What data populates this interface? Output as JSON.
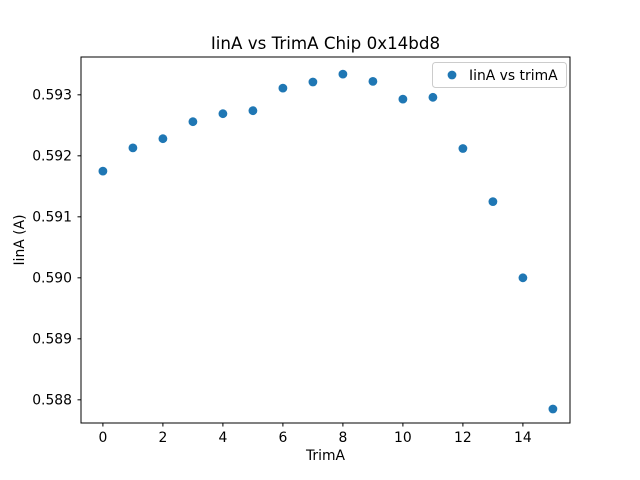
{
  "chart_data": {
    "type": "scatter",
    "title": "IinA vs TrimA Chip 0x14bd8",
    "xlabel": "TrimA",
    "ylabel": "IinA (A)",
    "legend": {
      "position": "upper right",
      "entries": [
        {
          "label": "IinA vs trimA",
          "marker": "circle",
          "marker_color": "#1f77b4"
        }
      ]
    },
    "series": [
      {
        "name": "IinA vs trimA",
        "marker": "circle",
        "marker_color": "#1f77b4",
        "x": [
          0,
          1,
          2,
          3,
          4,
          5,
          6,
          7,
          8,
          9,
          10,
          11,
          12,
          13,
          14,
          15
        ],
        "y": [
          0.59175,
          0.59213,
          0.59228,
          0.59256,
          0.59269,
          0.59274,
          0.59311,
          0.59321,
          0.59334,
          0.59322,
          0.59293,
          0.59296,
          0.59212,
          0.59125,
          0.59,
          0.58785
        ]
      }
    ],
    "xlim": [
      -0.73,
      15.57
    ],
    "ylim": [
      0.58762,
      0.59362
    ],
    "xticks": {
      "values": [
        0,
        2,
        4,
        6,
        8,
        10,
        12,
        14
      ],
      "labels": [
        "0",
        "2",
        "4",
        "6",
        "8",
        "10",
        "12",
        "14"
      ]
    },
    "yticks": {
      "values": [
        0.588,
        0.589,
        0.59,
        0.591,
        0.592,
        0.593
      ],
      "labels": [
        "0.588",
        "0.589",
        "0.590",
        "0.591",
        "0.592",
        "0.593"
      ]
    },
    "grid": false,
    "colors": {
      "background": "#ffffff",
      "axes": "#000000",
      "text": "#000000",
      "legend_border": "#cccccc"
    }
  }
}
